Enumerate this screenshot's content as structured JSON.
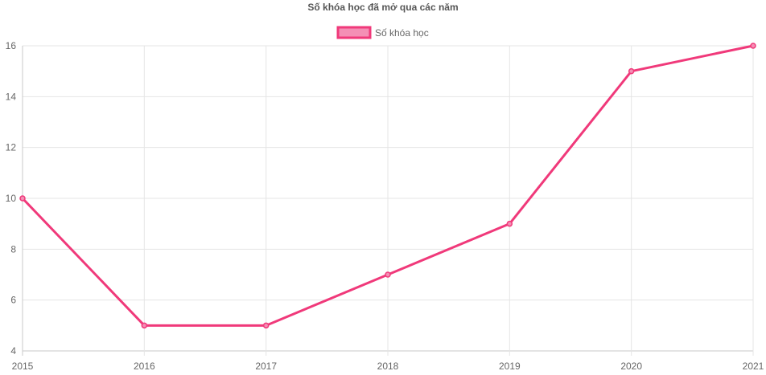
{
  "chart_data": {
    "type": "line",
    "title": "Số khóa học đã mở qua các năm",
    "xlabel": "",
    "ylabel": "",
    "categories": [
      "2015",
      "2016",
      "2017",
      "2018",
      "2019",
      "2020",
      "2021"
    ],
    "series": [
      {
        "name": "Số khóa học",
        "values": [
          10,
          5,
          5,
          7,
          9,
          15,
          16
        ],
        "color": "#f0397a",
        "fill_color": "#f48fb5"
      }
    ],
    "ylim": [
      4,
      16
    ],
    "yticks": [
      "4",
      "6",
      "8",
      "10",
      "12",
      "14",
      "16"
    ],
    "grid": true,
    "legend_position": "top-center"
  }
}
